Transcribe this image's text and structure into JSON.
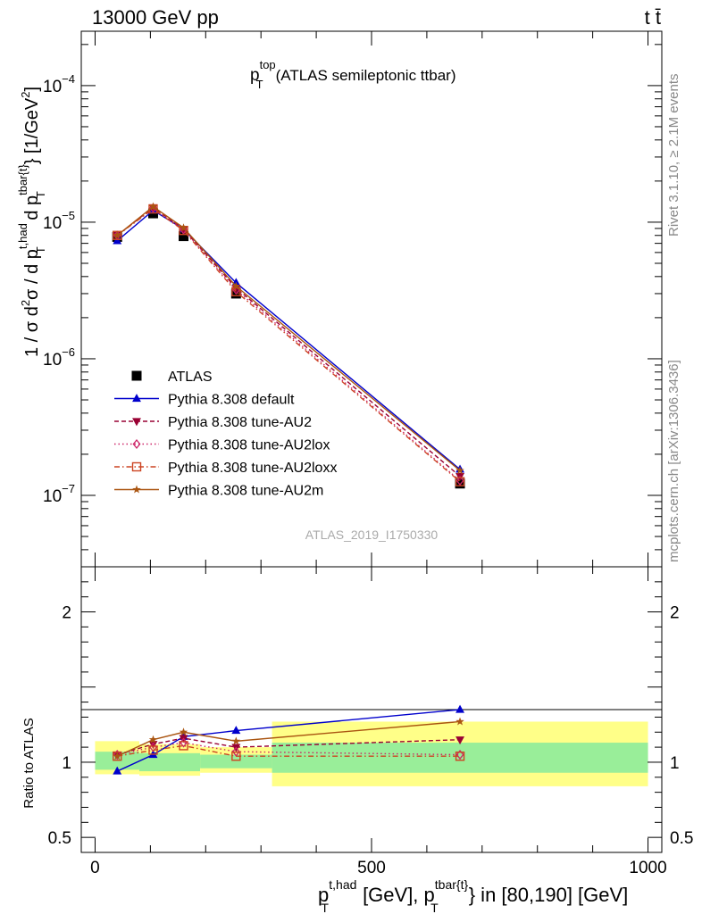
{
  "header": {
    "left": "13000 GeV pp",
    "right_main": "tt",
    "right_bar": "̄",
    "right_symbol": "t t̄"
  },
  "side_text": {
    "rivet": "Rivet 3.1.10, ≥ 2.1M events",
    "mcplots": "mcplots.cern.ch [arXiv:1306.3436]"
  },
  "chart_data": [
    {
      "type": "line",
      "title": {
        "main": "p",
        "sup": "top",
        "sub": "T",
        "rest": "(ATLAS semileptonic ttbar)"
      },
      "watermark": "ATLAS_2019_I1750330",
      "ylabel": {
        "p1": "1 / σ d",
        "p1sup": "2",
        "p2": "σ / d p",
        "p2sup": "t,had",
        "p2sub": "T",
        "p3": " d p",
        "p3sup": "tbar{t}",
        "p3sub": "T",
        "p4": "} [1/GeV",
        "p4sup": "2",
        "p5": "]"
      },
      "yscale": "log",
      "ylim": [
        3e-08,
        0.00025
      ],
      "xlim": [
        -25,
        1025
      ],
      "y_ticks": [
        {
          "value": 1e-07,
          "base": "10",
          "exp": "−7"
        },
        {
          "value": 1e-06,
          "base": "10",
          "exp": "−6"
        },
        {
          "value": 1e-05,
          "base": "10",
          "exp": "−5"
        },
        {
          "value": 0.0001,
          "base": "10",
          "exp": "−4"
        }
      ],
      "x": [
        40,
        105,
        160,
        255,
        660
      ],
      "series": [
        {
          "name": "ATLAS",
          "color": "#000000",
          "marker": "square",
          "dash": "none",
          "line": false,
          "values": [
            7.8e-06,
            1.16e-05,
            7.9e-06,
            3e-06,
            1.22e-07
          ]
        },
        {
          "name": "Pythia 8.308 default",
          "color": "#0000cc",
          "marker": "triangle-up",
          "dash": "solid",
          "line": true,
          "values": [
            7.3e-06,
            1.22e-05,
            8.9e-06,
            3.6e-06,
            1.55e-07
          ]
        },
        {
          "name": "Pythia 8.308 tune-AU2",
          "color": "#990033",
          "marker": "triangle-down",
          "dash": "5,3",
          "line": true,
          "values": [
            8e-06,
            1.28e-05,
            8.9e-06,
            3.3e-06,
            1.38e-07
          ]
        },
        {
          "name": "Pythia 8.308 tune-AU2lox",
          "color": "#cc2266",
          "marker": "diamond-open",
          "dash": "1.5,3",
          "line": true,
          "values": [
            8e-06,
            1.27e-05,
            8.8e-06,
            3.2e-06,
            1.28e-07
          ]
        },
        {
          "name": "Pythia 8.308 tune-AU2loxx",
          "color": "#cc4422",
          "marker": "square-open",
          "dash": "6,3,1.5,3",
          "line": true,
          "values": [
            8e-06,
            1.25e-05,
            8.7e-06,
            3.1e-06,
            1.26e-07
          ]
        },
        {
          "name": "Pythia 8.308 tune-AU2m",
          "color": "#aa5511",
          "marker": "star",
          "dash": "solid",
          "line": true,
          "values": [
            8e-06,
            1.3e-05,
            9.1e-06,
            3.4e-06,
            1.52e-07
          ]
        }
      ]
    },
    {
      "type": "line",
      "ylabel": "Ratio to ATLAS",
      "ylim": [
        0.4,
        2.3
      ],
      "xlim": [
        -25,
        1025
      ],
      "y_ticks": [
        {
          "value": 0.5,
          "label": "0.5"
        },
        {
          "value": 1,
          "label": "1"
        },
        {
          "value": 2,
          "label": "2"
        }
      ],
      "x_ticks": [
        {
          "value": 0,
          "label": "0"
        },
        {
          "value": 500,
          "label": "500"
        },
        {
          "value": 1000,
          "label": "1000"
        }
      ],
      "xlabel": {
        "p1": "p",
        "p1sup": "t,had",
        "p1sub": "T",
        "p2": " [GeV], p",
        "p2sup": "tbar{t}",
        "p2sub": "T",
        "p3": "} in [80,190] [GeV]"
      },
      "bands": [
        {
          "x0": 0,
          "x1": 80,
          "stat_lo": 0.95,
          "stat_hi": 1.07,
          "tot_lo": 0.92,
          "tot_hi": 1.14
        },
        {
          "x0": 80,
          "x1": 190,
          "stat_lo": 0.94,
          "stat_hi": 1.06,
          "tot_lo": 0.91,
          "tot_hi": 1.12
        },
        {
          "x0": 190,
          "x1": 320,
          "stat_lo": 0.96,
          "stat_hi": 1.05,
          "tot_lo": 0.93,
          "tot_hi": 1.1
        },
        {
          "x0": 320,
          "x1": 1000,
          "stat_lo": 0.93,
          "stat_hi": 1.13,
          "tot_lo": 0.84,
          "tot_hi": 1.27
        }
      ],
      "ratio_series": [
        {
          "name": "Pythia 8.308 default",
          "values": [
            0.94,
            1.05,
            1.17,
            1.21,
            1.35
          ]
        },
        {
          "name": "Pythia 8.308 tune-AU2",
          "values": [
            1.05,
            1.12,
            1.16,
            1.1,
            1.15
          ]
        },
        {
          "name": "Pythia 8.308 tune-AU2lox",
          "values": [
            1.05,
            1.1,
            1.13,
            1.07,
            1.05
          ]
        },
        {
          "name": "Pythia 8.308 tune-AU2loxx",
          "values": [
            1.04,
            1.08,
            1.11,
            1.04,
            1.04
          ]
        },
        {
          "name": "Pythia 8.308 tune-AU2m",
          "values": [
            1.04,
            1.15,
            1.2,
            1.14,
            1.27
          ]
        }
      ]
    }
  ]
}
